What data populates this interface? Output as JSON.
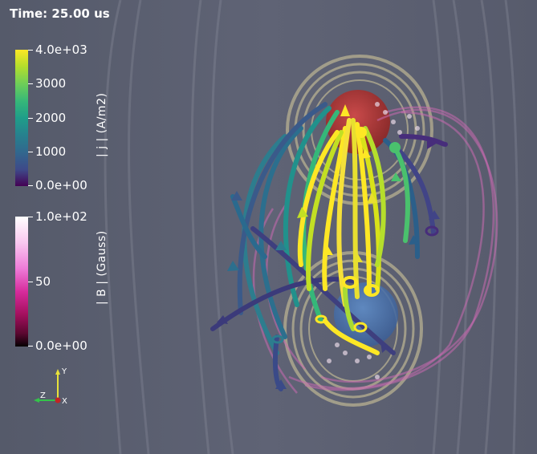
{
  "time_label": "Time: 25.00 us",
  "colorbar_current": {
    "title": "| j | (A/m2)",
    "ticks": [
      "4.0e+03",
      "3000",
      "2000",
      "1000",
      "0.0e+00"
    ]
  },
  "colorbar_field": {
    "title": "| B | (Gauss)",
    "ticks": [
      "1.0e+02",
      "50",
      "0.0e+00"
    ]
  },
  "axes": {
    "y": "Y",
    "z": "Z",
    "x": "X"
  },
  "colors": {
    "background": "#5a5e70",
    "anode_sphere": "#b03a3a",
    "cathode_sphere": "#4a78b8",
    "rings": "#c8bf96",
    "field_lines": "#d070c0"
  },
  "icons": [
    "axes-triad-icon"
  ]
}
